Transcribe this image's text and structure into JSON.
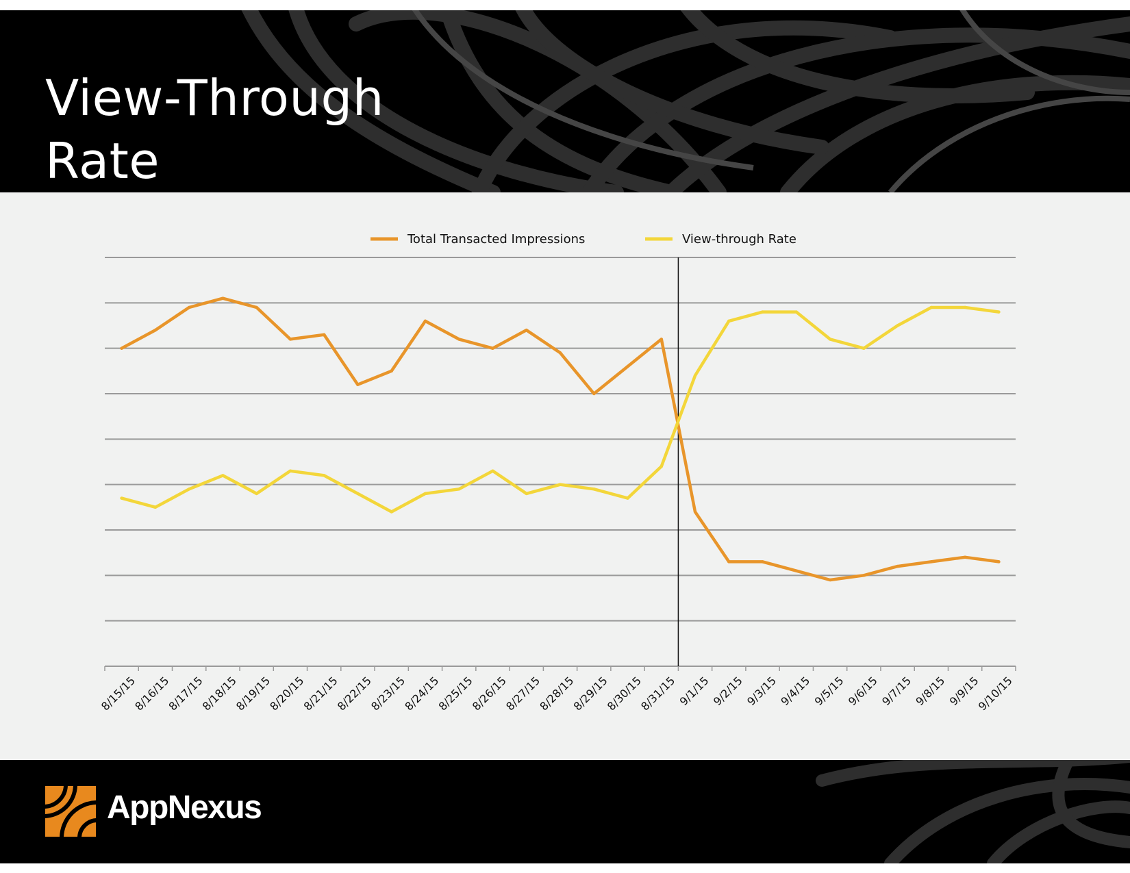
{
  "header": {
    "title_line1": "View-Through",
    "title_line2": "Rate"
  },
  "footer": {
    "brand_name": "AppNexus"
  },
  "colors": {
    "impressions": "#e8952a",
    "view_through": "#f3d63a",
    "background": "#000000",
    "chart_bg": "#f1f2f1",
    "gridline": "#9a9a9a",
    "logo": "#e8891e"
  },
  "chart_data": {
    "type": "line",
    "title": "",
    "xlabel": "",
    "ylabel": "",
    "grid": true,
    "legend_position": "top-center",
    "y_axis_labels_shown": false,
    "ylim": [
      0,
      9
    ],
    "y_gridlines": [
      1,
      2,
      3,
      4,
      5,
      6,
      7,
      8,
      9
    ],
    "x": [
      "8/15/15",
      "8/16/15",
      "8/17/15",
      "8/18/15",
      "8/19/15",
      "8/20/15",
      "8/21/15",
      "8/22/15",
      "8/23/15",
      "8/24/15",
      "8/25/15",
      "8/26/15",
      "8/27/15",
      "8/28/15",
      "8/29/15",
      "8/30/15",
      "8/31/15",
      "9/1/15",
      "9/2/15",
      "9/3/15",
      "9/4/15",
      "9/5/15",
      "9/6/15",
      "9/7/15",
      "9/8/15",
      "9/9/15",
      "9/10/15"
    ],
    "vertical_marker_between": [
      "8/31/15",
      "9/1/15"
    ],
    "series": [
      {
        "name": "Total Transacted Impressions",
        "color": "#e8952a",
        "values": [
          7.0,
          7.4,
          7.9,
          8.1,
          7.9,
          7.2,
          7.3,
          6.2,
          6.5,
          7.6,
          7.2,
          7.0,
          7.4,
          6.9,
          6.0,
          6.6,
          7.2,
          3.4,
          2.3,
          2.3,
          2.1,
          1.9,
          2.0,
          2.2,
          2.3,
          2.4,
          2.3
        ]
      },
      {
        "name": "View-through Rate",
        "color": "#f3d63a",
        "values": [
          3.7,
          3.5,
          3.9,
          4.2,
          3.8,
          4.3,
          4.2,
          3.8,
          3.4,
          3.8,
          3.9,
          4.3,
          3.8,
          4.0,
          3.9,
          3.7,
          4.4,
          6.4,
          7.6,
          7.8,
          7.8,
          7.2,
          7.0,
          7.5,
          7.9,
          7.9,
          7.8
        ]
      }
    ]
  }
}
